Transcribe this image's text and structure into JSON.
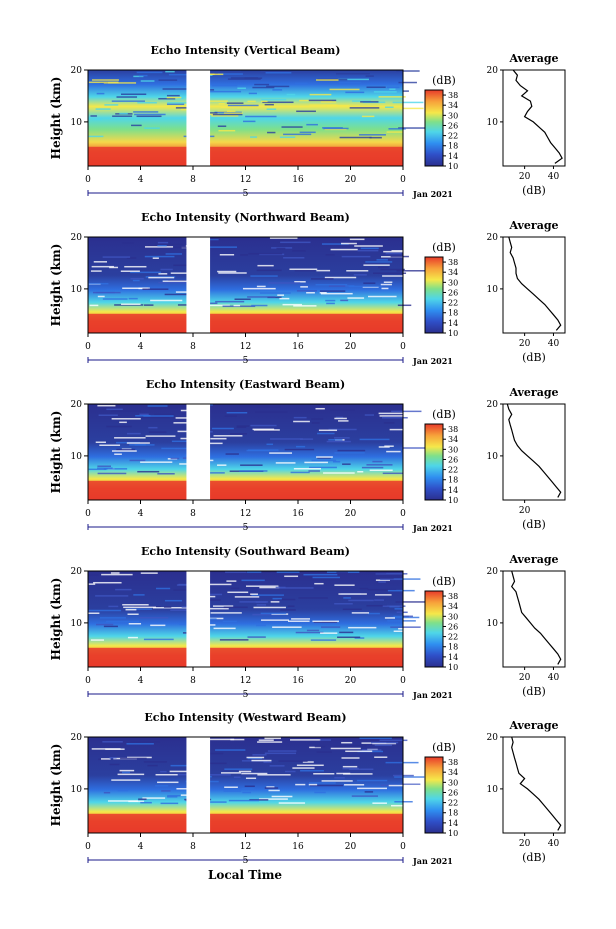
{
  "page": {
    "xlabel": "Local Time"
  },
  "colors": {
    "low": "#2b2f8f",
    "mid_blue": "#2f6fe0",
    "cyan": "#4fd6e8",
    "green": "#7fe08a",
    "yellow": "#f5e84a",
    "orange": "#f7a13a",
    "red": "#e83a2a"
  },
  "chart_data": [
    {
      "type": "heatmap",
      "title": "Echo Intensity (Vertical Beam)",
      "ylabel": "Height (km)",
      "x_ticks": [
        "0",
        "4",
        "8",
        "12",
        "16",
        "20",
        "0"
      ],
      "x_range": [
        0,
        24
      ],
      "y_ticks": [
        "20",
        "10"
      ],
      "y_range": [
        1.5,
        20
      ],
      "date_marker": "5",
      "date_label": "Jan 2021",
      "data_gap": [
        7.5,
        9.3
      ],
      "colorbar": {
        "label": "(dB)",
        "ticks": [
          "38",
          "34",
          "30",
          "26",
          "22",
          "18",
          "14",
          "10"
        ],
        "range": [
          10,
          40
        ]
      },
      "average": {
        "title": "Average",
        "xlabel": "(dB)",
        "x_ticks": [
          "20",
          "40"
        ],
        "x_range": [
          5,
          48
        ],
        "y_ticks": [
          "20",
          "10"
        ],
        "height_km": [
          20,
          19,
          18,
          17,
          16,
          15,
          14,
          13,
          12,
          11,
          10,
          9,
          8,
          7,
          6,
          5,
          4,
          3,
          2
        ],
        "values_db": [
          12,
          15,
          14,
          17,
          22,
          18,
          24,
          25,
          22,
          20,
          26,
          30,
          34,
          36,
          38,
          41,
          44,
          46,
          41
        ]
      }
    },
    {
      "type": "heatmap",
      "title": "Echo Intensity (Northward Beam)",
      "ylabel": "Height (km)",
      "x_ticks": [
        "0",
        "4",
        "8",
        "12",
        "16",
        "20",
        "0"
      ],
      "x_range": [
        0,
        24
      ],
      "y_ticks": [
        "20",
        "10"
      ],
      "y_range": [
        1.5,
        20
      ],
      "date_marker": "5",
      "date_label": "Jan 2021",
      "data_gap": [
        7.5,
        9.3
      ],
      "colorbar": {
        "label": "(dB)",
        "ticks": [
          "38",
          "34",
          "30",
          "26",
          "22",
          "18",
          "14",
          "10"
        ],
        "range": [
          10,
          40
        ]
      },
      "average": {
        "title": "Average",
        "xlabel": "(dB)",
        "x_ticks": [
          "20",
          "40"
        ],
        "x_range": [
          5,
          48
        ],
        "y_ticks": [
          "20",
          "10"
        ],
        "height_km": [
          20,
          19,
          18,
          17,
          16,
          15,
          14,
          13,
          12,
          11,
          10,
          9,
          8,
          7,
          6,
          5,
          4,
          3,
          2
        ],
        "values_db": [
          9,
          10,
          11,
          10,
          12,
          13,
          14,
          14,
          15,
          18,
          22,
          26,
          30,
          34,
          37,
          40,
          43,
          45,
          42
        ]
      }
    },
    {
      "type": "heatmap",
      "title": "Echo Intensity (Eastward Beam)",
      "ylabel": "Height (km)",
      "x_ticks": [
        "0",
        "4",
        "8",
        "12",
        "16",
        "20",
        "0"
      ],
      "x_range": [
        0,
        24
      ],
      "y_ticks": [
        "20",
        "10"
      ],
      "y_range": [
        1.5,
        20
      ],
      "date_marker": "5",
      "date_label": "Jan 2021",
      "data_gap": [
        7.5,
        9.3
      ],
      "colorbar": {
        "label": "(dB)",
        "ticks": [
          "38",
          "34",
          "30",
          "26",
          "22",
          "18",
          "14",
          "10"
        ],
        "range": [
          10,
          40
        ]
      },
      "average": {
        "title": "Average",
        "xlabel": "(dB)",
        "x_ticks": [
          "20"
        ],
        "x_range": [
          5,
          48
        ],
        "y_ticks": [
          "20",
          "10"
        ],
        "height_km": [
          20,
          19,
          18,
          17,
          16,
          15,
          14,
          13,
          12,
          11,
          10,
          9,
          8,
          7,
          6,
          5,
          4,
          3,
          2
        ],
        "values_db": [
          8,
          9,
          11,
          9,
          10,
          11,
          12,
          13,
          15,
          18,
          22,
          26,
          30,
          33,
          36,
          39,
          42,
          45,
          43
        ]
      }
    },
    {
      "type": "heatmap",
      "title": "Echo Intensity (Southward Beam)",
      "ylabel": "Height (km)",
      "x_ticks": [
        "0",
        "4",
        "8",
        "12",
        "16",
        "20",
        "0"
      ],
      "x_range": [
        0,
        24
      ],
      "y_ticks": [
        "20",
        "10"
      ],
      "y_range": [
        1.5,
        20
      ],
      "date_marker": "5",
      "date_label": "Jan 2021",
      "data_gap": [
        7.5,
        9.3
      ],
      "colorbar": {
        "label": "(dB)",
        "ticks": [
          "38",
          "34",
          "30",
          "26",
          "22",
          "18",
          "14",
          "10"
        ],
        "range": [
          10,
          40
        ]
      },
      "average": {
        "title": "Average",
        "xlabel": "(dB)",
        "x_ticks": [
          "20",
          "40"
        ],
        "x_range": [
          5,
          48
        ],
        "y_ticks": [
          "20",
          "10"
        ],
        "height_km": [
          20,
          19,
          18,
          17,
          16,
          15,
          14,
          13,
          12,
          11,
          10,
          9,
          8,
          7,
          6,
          5,
          4,
          3,
          2
        ],
        "values_db": [
          11,
          12,
          13,
          11,
          14,
          15,
          16,
          17,
          18,
          21,
          24,
          27,
          31,
          34,
          37,
          40,
          43,
          45,
          43
        ]
      }
    },
    {
      "type": "heatmap",
      "title": "Echo Intensity (Westward Beam)",
      "ylabel": "Height (km)",
      "x_ticks": [
        "0",
        "4",
        "8",
        "12",
        "16",
        "20",
        "0"
      ],
      "x_range": [
        0,
        24
      ],
      "y_ticks": [
        "20",
        "10"
      ],
      "y_range": [
        1.5,
        20
      ],
      "date_marker": "5",
      "date_label": "Jan 2021",
      "data_gap": [
        7.5,
        9.3
      ],
      "colorbar": {
        "label": "(dB)",
        "ticks": [
          "38",
          "34",
          "30",
          "26",
          "22",
          "18",
          "14",
          "10"
        ],
        "range": [
          10,
          40
        ]
      },
      "average": {
        "title": "Average",
        "xlabel": "(dB)",
        "x_ticks": [
          "20",
          "40"
        ],
        "x_range": [
          5,
          48
        ],
        "y_ticks": [
          "20",
          "10"
        ],
        "height_km": [
          20,
          19,
          18,
          17,
          16,
          15,
          14,
          13,
          12,
          11,
          10,
          9,
          8,
          7,
          6,
          5,
          4,
          3,
          2
        ],
        "values_db": [
          11,
          12,
          11,
          12,
          13,
          14,
          15,
          16,
          20,
          17,
          22,
          26,
          30,
          33,
          36,
          39,
          42,
          45,
          43
        ]
      }
    }
  ]
}
